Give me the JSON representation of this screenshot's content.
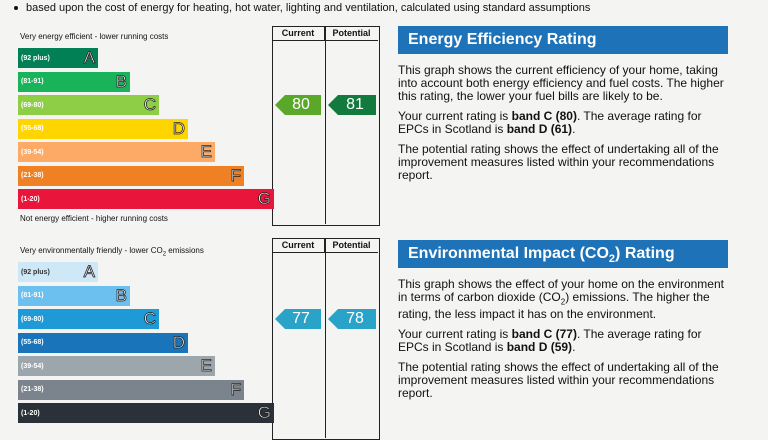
{
  "top_line": "based upon the cost of energy for heating, hot water, lighting and ventilation, calculated using standard assumptions",
  "energy": {
    "left_header": "Very energy efficient - lower running costs",
    "current_header": "Current",
    "potential_header": "Potential",
    "footer": "Not energy efficient - higher running costs",
    "bands": [
      {
        "range": "(92 plus)",
        "letter": "A",
        "color": "#008054"
      },
      {
        "range": "(81-91)",
        "letter": "B",
        "color": "#19b459"
      },
      {
        "range": "(69-80)",
        "letter": "C",
        "color": "#8dce46"
      },
      {
        "range": "(55-68)",
        "letter": "D",
        "color": "#ffd500"
      },
      {
        "range": "(39-54)",
        "letter": "E",
        "color": "#fcaa65"
      },
      {
        "range": "(21-38)",
        "letter": "F",
        "color": "#ef8023"
      },
      {
        "range": "(1-20)",
        "letter": "G",
        "color": "#e9153b"
      }
    ],
    "current_value": "80",
    "potential_value": "81",
    "current_color": "#5aa82a",
    "potential_color": "#137a3e"
  },
  "environment": {
    "left_header_pre": "Very environmentally friendly - lower CO",
    "left_header_sub": "2",
    "left_header_post": " emissions",
    "current_header": "Current",
    "potential_header": "Potential",
    "bands": [
      {
        "range": "(92 plus)",
        "letter": "A",
        "color": "#cfe8f7"
      },
      {
        "range": "(81-91)",
        "letter": "B",
        "color": "#6cc0ef"
      },
      {
        "range": "(69-80)",
        "letter": "C",
        "color": "#1e9bd7"
      },
      {
        "range": "(55-68)",
        "letter": "D",
        "color": "#1a74b9"
      },
      {
        "range": "(39-54)",
        "letter": "E",
        "color": "#9ea6ad"
      },
      {
        "range": "(21-38)",
        "letter": "F",
        "color": "#7b848c"
      },
      {
        "range": "(1-20)",
        "letter": "G",
        "color": "#2b3138"
      }
    ],
    "current_value": "77",
    "potential_value": "78",
    "current_color": "#2aa3c9",
    "potential_color": "#2aa3c9"
  },
  "energy_panel": {
    "title": "Energy Efficiency Rating",
    "p1": "This graph shows the current efficiency of your home, taking into account both energy efficiency and fuel costs. The higher this rating, the lower your fuel bills are likely to be.",
    "p2_pre": "Your current rating is ",
    "p2_bold1": "band C (80)",
    "p2_mid": ". The average rating for EPCs in Scotland is ",
    "p2_bold2": "band D (61)",
    "p2_post": ".",
    "p3": "The potential rating shows the effect of undertaking all of the improvement measures listed within your recommendations report."
  },
  "env_panel": {
    "title_pre": "Environmental Impact (CO",
    "title_sub": "2",
    "title_post": ") Rating",
    "p1_pre": "This graph shows the effect of your home on the environment in terms of carbon dioxide (CO",
    "p1_sub": "2",
    "p1_post": ") emissions. The higher the rating, the less impact it has on the environment.",
    "p2_pre": "Your current rating is ",
    "p2_bold1": "band C (77)",
    "p2_mid": ". The average rating for EPCs in Scotland is ",
    "p2_bold2": "band D (59)",
    "p2_post": ".",
    "p3": "The potential rating shows the effect of undertaking all of the improvement measures listed within your recommendations report."
  }
}
